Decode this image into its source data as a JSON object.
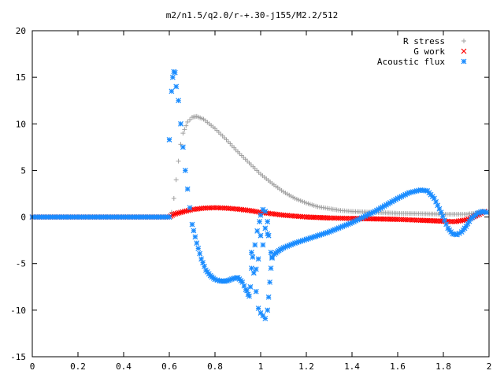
{
  "chart_data": {
    "type": "scatter",
    "title": "m2/n1.5/q2.0/r-+.30-j155/M2.2/512",
    "xlabel": "",
    "ylabel": "",
    "xlim": [
      0,
      2
    ],
    "ylim": [
      -15,
      20
    ],
    "x_ticks": [
      "0",
      "0.2",
      "0.4",
      "0.6",
      "0.8",
      "1",
      "1.2",
      "1.4",
      "1.6",
      "1.8",
      "2"
    ],
    "y_ticks": [
      "20",
      "15",
      "10",
      "5",
      "0",
      "-5",
      "-10",
      "-15"
    ],
    "grid": false,
    "legend_position": "top-right",
    "series": [
      {
        "name": "R stress",
        "marker": "+",
        "color": "#a0a0a0",
        "points": [
          [
            0.0,
            0
          ],
          [
            0.6,
            0
          ],
          [
            0.61,
            0.5
          ],
          [
            0.62,
            2.0
          ],
          [
            0.63,
            4.0
          ],
          [
            0.64,
            6.0
          ],
          [
            0.65,
            7.8
          ],
          [
            0.66,
            9.0
          ],
          [
            0.68,
            10.2
          ],
          [
            0.7,
            10.7
          ],
          [
            0.72,
            10.8
          ],
          [
            0.75,
            10.5
          ],
          [
            0.8,
            9.5
          ],
          [
            0.85,
            8.3
          ],
          [
            0.9,
            7.0
          ],
          [
            0.95,
            5.8
          ],
          [
            1.0,
            4.6
          ],
          [
            1.05,
            3.6
          ],
          [
            1.1,
            2.7
          ],
          [
            1.15,
            2.0
          ],
          [
            1.2,
            1.5
          ],
          [
            1.25,
            1.1
          ],
          [
            1.3,
            0.9
          ],
          [
            1.35,
            0.7
          ],
          [
            1.4,
            0.6
          ],
          [
            1.5,
            0.5
          ],
          [
            1.6,
            0.4
          ],
          [
            1.7,
            0.35
          ],
          [
            1.8,
            0.3
          ],
          [
            1.9,
            0.3
          ],
          [
            1.97,
            0.5
          ]
        ]
      },
      {
        "name": "G work",
        "marker": "x",
        "color": "#ff0000",
        "points": [
          [
            0.0,
            0
          ],
          [
            0.6,
            0
          ],
          [
            0.62,
            0.3
          ],
          [
            0.65,
            0.5
          ],
          [
            0.7,
            0.8
          ],
          [
            0.75,
            0.95
          ],
          [
            0.8,
            1.0
          ],
          [
            0.85,
            0.95
          ],
          [
            0.9,
            0.85
          ],
          [
            0.95,
            0.7
          ],
          [
            1.0,
            0.5
          ],
          [
            1.05,
            0.35
          ],
          [
            1.1,
            0.2
          ],
          [
            1.15,
            0.1
          ],
          [
            1.2,
            0.0
          ],
          [
            1.3,
            -0.1
          ],
          [
            1.4,
            -0.15
          ],
          [
            1.5,
            -0.2
          ],
          [
            1.6,
            -0.25
          ],
          [
            1.7,
            -0.35
          ],
          [
            1.8,
            -0.45
          ],
          [
            1.85,
            -0.5
          ],
          [
            1.9,
            -0.3
          ],
          [
            1.95,
            0.2
          ],
          [
            1.98,
            0.6
          ]
        ]
      },
      {
        "name": "Acoustic flux",
        "marker": "*",
        "color": "#1a8cff",
        "points": [
          [
            0.0,
            0
          ],
          [
            0.6,
            0
          ],
          [
            0.6,
            8.3
          ],
          [
            0.61,
            13.5
          ],
          [
            0.615,
            15.0
          ],
          [
            0.62,
            15.6
          ],
          [
            0.625,
            15.5
          ],
          [
            0.63,
            14.0
          ],
          [
            0.64,
            12.5
          ],
          [
            0.65,
            10.0
          ],
          [
            0.66,
            7.5
          ],
          [
            0.67,
            5.0
          ],
          [
            0.68,
            3.0
          ],
          [
            0.69,
            1.0
          ],
          [
            0.7,
            -0.8
          ],
          [
            0.72,
            -2.8
          ],
          [
            0.74,
            -4.5
          ],
          [
            0.76,
            -5.7
          ],
          [
            0.78,
            -6.3
          ],
          [
            0.8,
            -6.7
          ],
          [
            0.82,
            -6.85
          ],
          [
            0.84,
            -6.9
          ],
          [
            0.86,
            -6.8
          ],
          [
            0.88,
            -6.6
          ],
          [
            0.9,
            -6.5
          ],
          [
            0.92,
            -7.0
          ],
          [
            0.935,
            -7.8
          ],
          [
            0.945,
            -8.3
          ],
          [
            0.955,
            -7.5
          ],
          [
            0.96,
            -5.5
          ],
          [
            0.965,
            -4.3
          ],
          [
            0.975,
            -3.0
          ],
          [
            0.985,
            -1.5
          ],
          [
            0.995,
            -0.5
          ],
          [
            1.0,
            0.2
          ],
          [
            1.01,
            0.8
          ],
          [
            1.02,
            0.6
          ],
          [
            1.03,
            -0.5
          ],
          [
            1.035,
            -2.0
          ],
          [
            1.045,
            -3.8
          ],
          [
            1.05,
            -4.4
          ],
          [
            1.06,
            -4.0
          ],
          [
            1.08,
            -3.6
          ],
          [
            1.1,
            -3.3
          ],
          [
            1.15,
            -2.8
          ],
          [
            1.2,
            -2.4
          ],
          [
            1.25,
            -2.0
          ],
          [
            1.3,
            -1.6
          ],
          [
            1.35,
            -1.1
          ],
          [
            1.4,
            -0.6
          ],
          [
            1.45,
            0.0
          ],
          [
            1.5,
            0.6
          ],
          [
            1.55,
            1.3
          ],
          [
            1.6,
            2.0
          ],
          [
            1.65,
            2.6
          ],
          [
            1.7,
            2.9
          ],
          [
            1.73,
            2.8
          ],
          [
            1.76,
            2.0
          ],
          [
            1.79,
            0.5
          ],
          [
            1.82,
            -1.2
          ],
          [
            1.84,
            -1.8
          ],
          [
            1.86,
            -1.9
          ],
          [
            1.88,
            -1.6
          ],
          [
            1.9,
            -1.0
          ],
          [
            1.92,
            -0.2
          ],
          [
            1.95,
            0.4
          ],
          [
            1.97,
            0.6
          ],
          [
            1.99,
            0.5
          ]
        ],
        "scatter_points": [
          [
            0.94,
            -7.9
          ],
          [
            0.95,
            -8.5
          ],
          [
            0.98,
            -8.0
          ],
          [
            0.99,
            -9.8
          ],
          [
            1.0,
            -10.3
          ],
          [
            1.01,
            -10.6
          ],
          [
            1.02,
            -10.9
          ],
          [
            1.03,
            -10.0
          ],
          [
            1.035,
            -8.6
          ],
          [
            1.04,
            -7.0
          ],
          [
            1.045,
            -5.5
          ],
          [
            1.05,
            -4.3
          ],
          [
            0.99,
            -4.5
          ],
          [
            0.98,
            -5.6
          ],
          [
            0.97,
            -6.0
          ],
          [
            0.96,
            -3.8
          ],
          [
            1.0,
            -2.0
          ],
          [
            1.01,
            -3.0
          ],
          [
            1.02,
            -1.2
          ],
          [
            1.03,
            -1.8
          ]
        ]
      }
    ]
  }
}
